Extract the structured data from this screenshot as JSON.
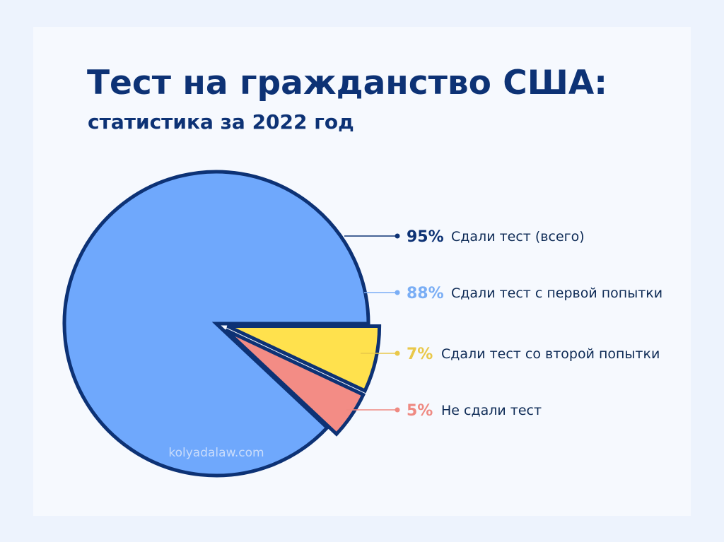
{
  "title": "Тест на гражданство США:",
  "subtitle": "статистика за 2022 год",
  "watermark": "kolyadalaw.com",
  "colors": {
    "background": "#edf3fd",
    "card": "#f6f9fe",
    "title": "#0d3275",
    "outline": "#0d3275",
    "passed_first": "#6fa8fc",
    "passed_second": "#ffe14d",
    "failed": "#f38c85",
    "passed_total": "#0d3275"
  },
  "chart_data": {
    "type": "pie",
    "slices": [
      {
        "key": "passed_first",
        "value": 88,
        "color": "#6fa8fc"
      },
      {
        "key": "passed_second",
        "value": 7,
        "color": "#ffe14d"
      },
      {
        "key": "failed",
        "value": 5,
        "color": "#f38c85"
      }
    ],
    "legend": [
      {
        "key": "passed_total",
        "value": "95%",
        "label": "Сдали тест (всего)",
        "color": "#0d3275"
      },
      {
        "key": "passed_first",
        "value": "88%",
        "label": "Сдали тест с первой попытки",
        "color": "#7aaef5"
      },
      {
        "key": "passed_second",
        "value": "7%",
        "label": "Сдали тест со второй попытки",
        "color": "#e9c84a"
      },
      {
        "key": "failed",
        "value": "5%",
        "label": "Не сдали тест",
        "color": "#ef8a82"
      }
    ],
    "legend_position": "right"
  }
}
